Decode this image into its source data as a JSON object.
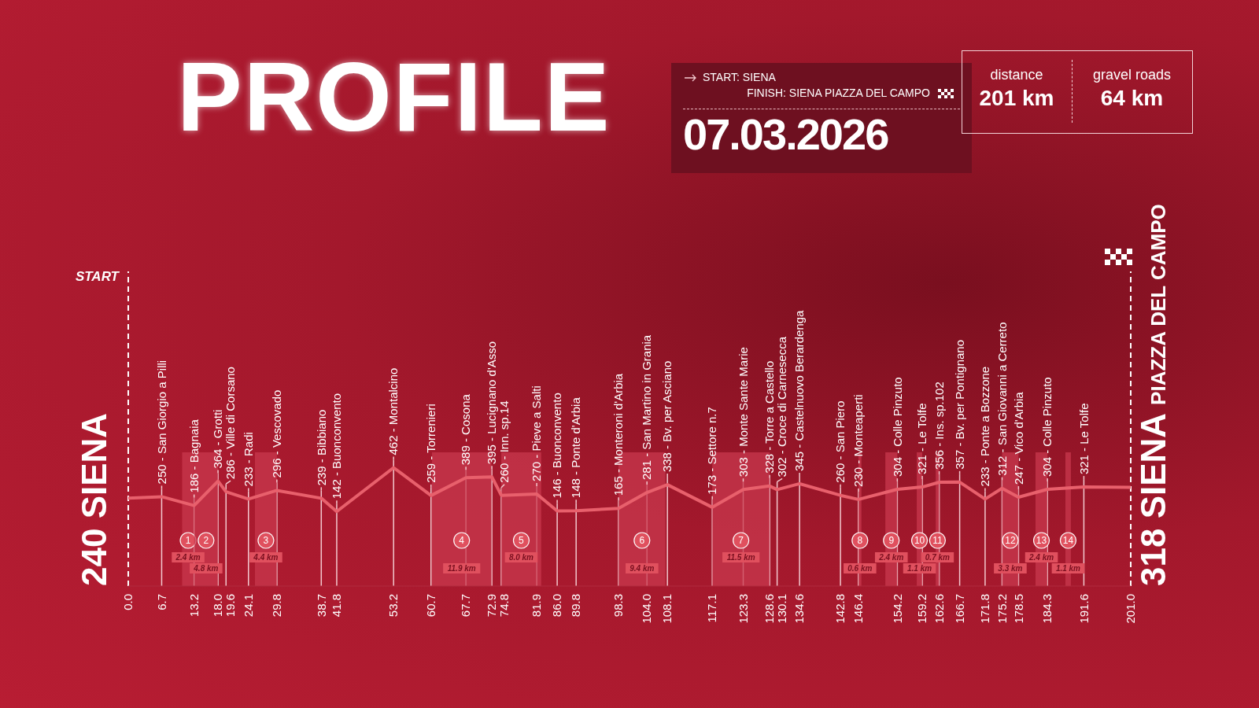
{
  "chart_data": {
    "type": "line",
    "title": "PROFILE",
    "x": [
      0,
      6.7,
      13.2,
      18,
      19.6,
      24.1,
      29.8,
      38.7,
      41.8,
      53.2,
      60.7,
      67.7,
      72.9,
      74.8,
      81.9,
      86,
      89.8,
      98.3,
      104,
      108.1,
      117.1,
      123.3,
      128.6,
      130.1,
      134.6,
      142.8,
      146.4,
      154.2,
      159.2,
      162.6,
      166.7,
      171.8,
      175.2,
      178.5,
      184.3,
      191.6,
      201
    ],
    "series": [
      {
        "color": "#e8606c",
        "values": [
          240,
          250,
          186,
          364,
          286,
          233,
          296,
          239,
          142,
          462,
          259,
          389,
          395,
          260,
          270,
          146,
          148,
          165,
          281,
          338,
          173,
          303,
          328,
          302,
          345,
          260,
          230,
          304,
          321,
          356,
          357,
          233,
          312,
          247,
          304,
          321,
          318
        ],
        "value_labels": [
          "240 SIENA",
          "250 - San Giorgio a Pilli",
          "186 - Bagnaia",
          "364 - Grotti",
          "286 - Ville di Corsano",
          "233 - Radi",
          "296 - Vescovado",
          "239 - Bibbiano",
          "142 - Buonconvento",
          "462 - Montalcino",
          "259 - Torrenieri",
          "389 - Cosona",
          "395 - Lucignano d'Asso",
          "260 - Inn. sp.14",
          "270 - Pieve a Salti",
          "146 - Buonconvento",
          "148 - Ponte d'Arbia",
          "165 - Monteroni d'Arbia",
          "281 - San Martino in Grania",
          "338 - Bv. per Asciano",
          "173 - Settore n.7",
          "303 - Monte Sante Marie",
          "328 - Torre a Castello",
          "302 - Croce di Carnesecca",
          "345 - Castelnuovo Berardenga",
          "260 - San Piero",
          "230 - Monteaperti",
          "304 - Colle Pinzuto",
          "321 - Le Tolfe",
          "356 - Ins. sp.102",
          "357 - Bv. per Pontignano",
          "233 - Ponte a Bozzone",
          "312 - San Giovanni a Cerreto",
          "247 - Vico d'Arbia",
          "304 - Colle Pinzuto",
          "321 - Le Tolfe",
          "318 SIENA PIAZZA DEL CAMPO"
        ]
      }
    ],
    "xlim": [
      0,
      201
    ],
    "xticks": [
      {
        "value": 0,
        "label": "0.0"
      },
      6.7,
      13.2,
      {
        "value": 18,
        "label": "18.0"
      },
      19.6,
      24.1,
      29.8,
      38.7,
      41.8,
      53.2,
      60.7,
      67.7,
      72.9,
      74.8,
      81.9,
      {
        "value": 86,
        "label": "86.0"
      },
      89.8,
      98.3,
      {
        "value": 104,
        "label": "104.0"
      },
      108.1,
      117.1,
      123.3,
      128.6,
      130.1,
      134.6,
      142.8,
      146.4,
      154.2,
      159.2,
      162.6,
      166.7,
      171.8,
      175.2,
      178.5,
      184.3,
      191.6,
      {
        "value": 201,
        "label": "201.0"
      }
    ],
    "tick_labels": "x",
    "grid": "x",
    "marker": "none",
    "line_style": "solid",
    "ref_lines": [
      {
        "axis": "x",
        "value": 0,
        "label": "START",
        "line_style": "dashed"
      },
      {
        "axis": "x",
        "value": 201,
        "line_style": "dashed"
      }
    ],
    "bands": [
      {
        "axis": "x",
        "from": 10.8,
        "to": 13.2,
        "label": "1",
        "color": "#c8384e"
      },
      {
        "axis": "x",
        "from": 13.2,
        "to": 18,
        "label": "2",
        "color": "#c8384e"
      },
      {
        "axis": "x",
        "from": 25.4,
        "to": 29.8,
        "label": "3",
        "color": "#c8384e"
      },
      {
        "axis": "x",
        "from": 60.9,
        "to": 72.8,
        "label": "4",
        "color": "#c8384e"
      },
      {
        "axis": "x",
        "from": 74.8,
        "to": 82.8,
        "label": "5",
        "color": "#c8384e"
      },
      {
        "axis": "x",
        "from": 98.3,
        "to": 107.7,
        "label": "6",
        "color": "#c8384e"
      },
      {
        "axis": "x",
        "from": 117.1,
        "to": 128.6,
        "label": "7",
        "color": "#c8384e"
      },
      {
        "axis": "x",
        "from": 146.4,
        "to": 147,
        "label": "8",
        "color": "#c8384e"
      },
      {
        "axis": "x",
        "from": 151.8,
        "to": 154.2,
        "label": "9",
        "color": "#c8384e"
      },
      {
        "axis": "x",
        "from": 158.1,
        "to": 159.2,
        "label": "10",
        "color": "#c8384e"
      },
      {
        "axis": "x",
        "from": 161.9,
        "to": 162.6,
        "label": "11",
        "color": "#c8384e"
      },
      {
        "axis": "x",
        "from": 175.2,
        "to": 178.5,
        "label": "12",
        "color": "#c8384e"
      },
      {
        "axis": "x",
        "from": 181.9,
        "to": 184.3,
        "label": "13",
        "color": "#c8384e"
      },
      {
        "axis": "x",
        "from": 187.9,
        "to": 189,
        "label": "14",
        "color": "#c8384e"
      }
    ],
    "annotations": [
      "START: SIENA",
      "FINISH: SIENA PIAZZA DEL CAMPO",
      "07.03.2026",
      "distance",
      "201 km",
      "gravel roads",
      "64 km",
      "2.4 km",
      "4.8 km",
      "4.4 km",
      "11.9 km",
      "8.0 km",
      "9.4 km",
      "11.5 km",
      "0.6 km",
      "2.4 km",
      "1.1 km",
      "0.7 km",
      "3.3 km",
      "2.4 km",
      "1.1 km"
    ]
  }
}
